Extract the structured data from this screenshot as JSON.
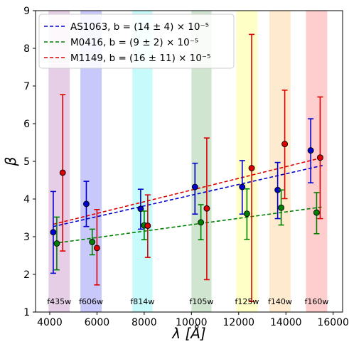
{
  "chart_data": {
    "type": "scatter",
    "xlabel": "λ [Å]",
    "ylabel": "β",
    "xlim": [
      3400,
      16400
    ],
    "ylim": [
      1,
      9
    ],
    "xticks": [
      4000,
      6000,
      8000,
      10000,
      12000,
      14000,
      16000
    ],
    "yticks": [
      1,
      2,
      3,
      4,
      5,
      6,
      7,
      8,
      9
    ],
    "grid": false,
    "legend_position": "upper-left",
    "bands": [
      {
        "label": "f435w",
        "x0": 3950,
        "x1": 4850,
        "color": "#e6cfe6"
      },
      {
        "label": "f606w",
        "x0": 5300,
        "x1": 6200,
        "color": "#c8c8fa"
      },
      {
        "label": "f814w",
        "x0": 7500,
        "x1": 8350,
        "color": "#c7fafa"
      },
      {
        "label": "f105w",
        "x0": 10000,
        "x1": 10850,
        "color": "#cfe5cf"
      },
      {
        "label": "f125w",
        "x0": 11900,
        "x1": 12800,
        "color": "#fefec7"
      },
      {
        "label": "f140w",
        "x0": 13300,
        "x1": 14200,
        "color": "#feebcf"
      },
      {
        "label": "f160w",
        "x0": 14850,
        "x1": 15750,
        "color": "#fecdcd"
      }
    ],
    "series": [
      {
        "name": "AS1063, b = (14 ± 4) × 10⁻⁵",
        "color": "#0000cc",
        "x": [
          4150,
          5550,
          7850,
          10150,
          12150,
          13650,
          15050
        ],
        "y": [
          3.12,
          3.87,
          3.74,
          4.32,
          4.32,
          4.24,
          5.29
        ],
        "ylo": [
          2.03,
          3.27,
          3.2,
          3.6,
          3.6,
          3.48,
          4.43
        ],
        "yhi": [
          4.2,
          4.47,
          4.26,
          4.95,
          5.02,
          4.97,
          6.13
        ],
        "fit": {
          "x0": 4150,
          "y0": 3.27,
          "x1": 15550,
          "y1": 4.89
        }
      },
      {
        "name": "M0416, b = (9 ± 2) × 10⁻⁵",
        "color": "#008000",
        "x": [
          4300,
          5800,
          8000,
          10400,
          12350,
          13800,
          15300
        ],
        "y": [
          2.82,
          2.86,
          3.3,
          3.38,
          3.61,
          3.77,
          3.64
        ],
        "ylo": [
          2.12,
          2.52,
          2.92,
          2.92,
          2.93,
          3.31,
          3.08
        ],
        "yhi": [
          3.52,
          3.2,
          3.68,
          3.85,
          4.27,
          4.24,
          4.17
        ],
        "fit": {
          "x0": 4150,
          "y0": 2.82,
          "x1": 15550,
          "y1": 3.79
        }
      },
      {
        "name": "M1149, b = (16 ± 11) × 10⁻⁵",
        "color": "#dd0000",
        "x": [
          4550,
          6000,
          8150,
          10650,
          12550,
          13950,
          15450
        ],
        "y": [
          4.7,
          2.7,
          3.29,
          3.75,
          4.82,
          5.46,
          5.1
        ],
        "ylo": [
          2.62,
          1.72,
          2.45,
          1.86,
          1.28,
          4.01,
          3.48
        ],
        "yhi": [
          6.77,
          3.72,
          4.11,
          5.62,
          8.37,
          6.89,
          6.71
        ],
        "fit": {
          "x0": 4150,
          "y0": 3.33,
          "x1": 15550,
          "y1": 5.1
        }
      }
    ]
  }
}
